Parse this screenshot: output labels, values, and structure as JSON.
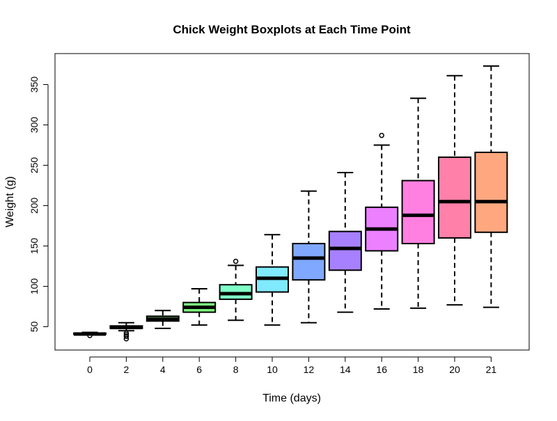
{
  "chart_data": {
    "type": "boxplot",
    "title": "Chick Weight Boxplots at Each Time Point",
    "xlabel": "Time (days)",
    "ylabel": "Weight (g)",
    "ylim": [
      20,
      385
    ],
    "yticks": [
      50,
      100,
      150,
      200,
      250,
      300,
      350
    ],
    "grid": false,
    "legend": "none",
    "categories": [
      "0",
      "2",
      "4",
      "6",
      "8",
      "10",
      "12",
      "14",
      "16",
      "18",
      "20",
      "21"
    ],
    "boxes": [
      {
        "category": "0",
        "whisker_low": 41,
        "q1": 41,
        "median": 41,
        "q3": 42,
        "whisker_high": 43,
        "outliers": [
          39
        ],
        "color": "#3a3a3a"
      },
      {
        "category": "2",
        "whisker_low": 45,
        "q1": 48,
        "median": 49,
        "q3": 51,
        "whisker_high": 55,
        "outliers": [
          35,
          38,
          40,
          42
        ],
        "color": "#4d4d4d"
      },
      {
        "category": "4",
        "whisker_low": 48,
        "q1": 57,
        "median": 59,
        "q3": 63,
        "whisker_high": 70,
        "outliers": [],
        "color": "#4f7f4f"
      },
      {
        "category": "6",
        "whisker_low": 52,
        "q1": 68,
        "median": 74,
        "q3": 80,
        "whisker_high": 97,
        "outliers": [],
        "color": "#80ff80"
      },
      {
        "category": "8",
        "whisker_low": 58,
        "q1": 84,
        "median": 91,
        "q3": 102,
        "whisker_high": 126,
        "outliers": [
          131
        ],
        "color": "#80ffc8"
      },
      {
        "category": "10",
        "whisker_low": 52,
        "q1": 93,
        "median": 110,
        "q3": 124,
        "whisker_high": 164,
        "outliers": [],
        "color": "#80eaff"
      },
      {
        "category": "12",
        "whisker_low": 55,
        "q1": 108,
        "median": 135,
        "q3": 153,
        "whisker_high": 218,
        "outliers": [],
        "color": "#80a8ff"
      },
      {
        "category": "14",
        "whisker_low": 68,
        "q1": 120,
        "median": 147,
        "q3": 168,
        "whisker_high": 241,
        "outliers": [],
        "color": "#a680ff"
      },
      {
        "category": "16",
        "whisker_low": 72,
        "q1": 144,
        "median": 171,
        "q3": 198,
        "whisker_high": 275,
        "outliers": [
          287
        ],
        "color": "#ec80ff"
      },
      {
        "category": "18",
        "whisker_low": 73,
        "q1": 153,
        "median": 188,
        "q3": 231,
        "whisker_high": 333,
        "outliers": [],
        "color": "#ff80e0"
      },
      {
        "category": "20",
        "whisker_low": 77,
        "q1": 160,
        "median": 205,
        "q3": 260,
        "whisker_high": 361,
        "outliers": [],
        "color": "#ff80a8"
      },
      {
        "category": "21",
        "whisker_low": 74,
        "q1": 167,
        "median": 205,
        "q3": 266,
        "whisker_high": 373,
        "outliers": [],
        "color": "#ffa880"
      }
    ]
  }
}
